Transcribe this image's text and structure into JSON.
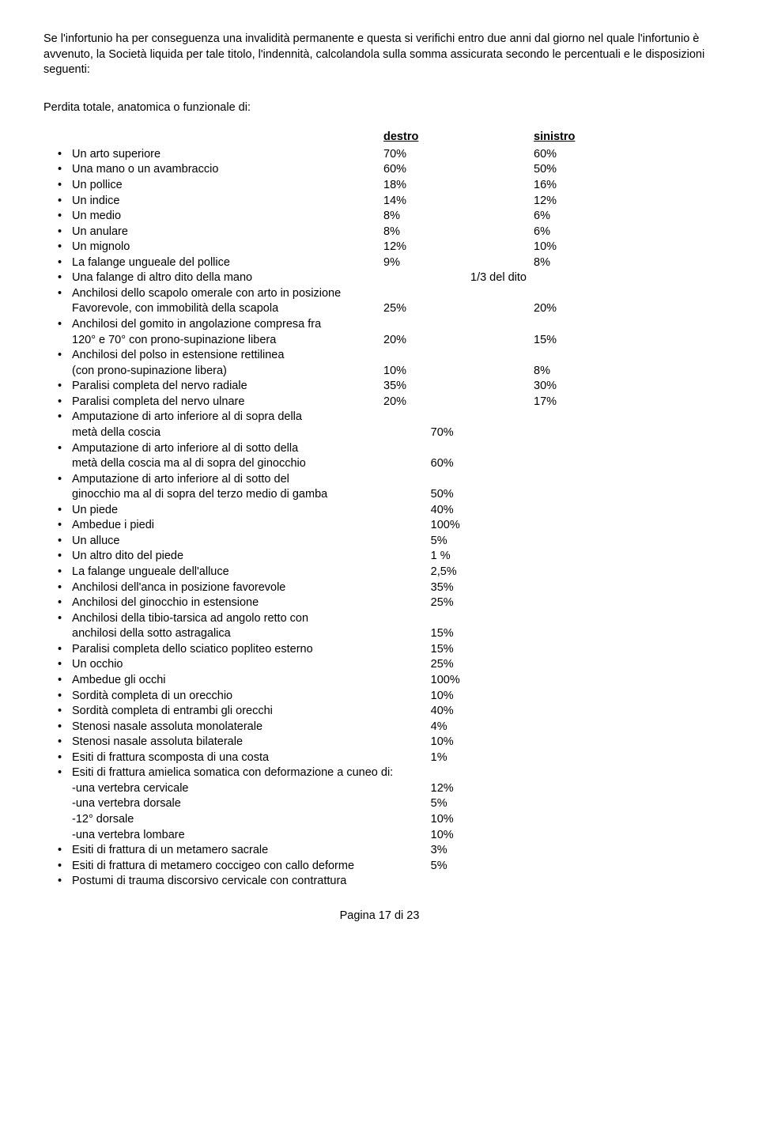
{
  "intro": "Se l'infortunio ha per conseguenza una invalidità permanente e questa si verifichi entro due anni dal giorno nel quale l'infortunio è avvenuto, la Società liquida per tale titolo, l'indennità, calcolandola sulla somma assicurata secondo le percentuali e le disposizioni seguenti:",
  "sub": "Perdita totale, anatomica o funzionale di:",
  "h1": "destro",
  "h2": "sinistro",
  "rows": [
    {
      "t": "two",
      "l": "Un arto superiore",
      "d": "70%",
      "s": "60%"
    },
    {
      "t": "two",
      "l": "Una mano o un avambraccio",
      "d": "60%",
      "s": "50%"
    },
    {
      "t": "two",
      "l": "Un pollice",
      "d": "18%",
      "s": "16%"
    },
    {
      "t": "two",
      "l": "Un indice",
      "d": "14%",
      "s": "12%"
    },
    {
      "t": "two",
      "l": "Un medio",
      "d": "8%",
      "s": "6%"
    },
    {
      "t": "two",
      "l": "Un anulare",
      "d": "8%",
      "s": "6%"
    },
    {
      "t": "two",
      "l": "Un mignolo",
      "d": "12%",
      "s": "10%"
    },
    {
      "t": "two",
      "l": "La falange ungueale del pollice",
      "d": "9%",
      "s": "8%"
    },
    {
      "t": "mid",
      "l": "Una falange di altro dito della mano",
      "m": "1/3 del dito"
    },
    {
      "t": "lbl",
      "l": "Anchilosi dello scapolo omerale con arto in posizione"
    },
    {
      "t": "two-sub",
      "l": "Favorevole, con immobilità della scapola",
      "d": "25%",
      "s": "20%"
    },
    {
      "t": "lbl",
      "l": "Anchilosi del gomito in angolazione compresa fra"
    },
    {
      "t": "two-sub",
      "l": "120° e 70° con prono-supinazione libera",
      "d": "20%",
      "s": "15%"
    },
    {
      "t": "lbl",
      "l": "Anchilosi del polso in estensione rettilinea"
    },
    {
      "t": "two-sub",
      "l": "(con prono-supinazione libera)",
      "d": "10%",
      "s": "8%"
    },
    {
      "t": "two",
      "l": "Paralisi completa del nervo radiale",
      "d": "35%",
      "s": "30%"
    },
    {
      "t": "two",
      "l": "Paralisi completa del nervo ulnare",
      "d": "20%",
      "s": "17%"
    },
    {
      "t": "lbl",
      "l": "Amputazione di arto inferiore al di sopra della"
    },
    {
      "t": "one-sub",
      "l": "metà della coscia",
      "v": "70%"
    },
    {
      "t": "lbl",
      "l": "Amputazione di arto inferiore al di sotto della"
    },
    {
      "t": "one-sub",
      "l": "metà della coscia ma al di sopra del ginocchio",
      "v": "60%"
    },
    {
      "t": "lbl",
      "l": "Amputazione di arto inferiore al di sotto del"
    },
    {
      "t": "one-sub",
      "l": "ginocchio ma al di sopra del terzo medio di gamba",
      "v": "50%"
    },
    {
      "t": "one",
      "l": "Un piede",
      "v": "40%"
    },
    {
      "t": "one",
      "l": "Ambedue i piedi",
      "v": "100%"
    },
    {
      "t": "one",
      "l": "Un alluce",
      "v": "5%"
    },
    {
      "t": "one",
      "l": "Un altro dito del piede",
      "v": "1 %"
    },
    {
      "t": "one",
      "l": "La falange ungueale dell'alluce",
      "v": "2,5%"
    },
    {
      "t": "one",
      "l": "Anchilosi dell'anca in posizione favorevole",
      "v": "35%"
    },
    {
      "t": "one",
      "l": "Anchilosi del ginocchio in estensione",
      "v": "25%"
    },
    {
      "t": "lbl",
      "l": "Anchilosi della tibio-tarsica ad angolo retto con"
    },
    {
      "t": "one-sub",
      "l": "anchilosi della sotto astragalica",
      "v": "15%"
    },
    {
      "t": "one",
      "l": "Paralisi completa dello sciatico popliteo esterno",
      "v": "15%"
    },
    {
      "t": "one",
      "l": "Un occhio",
      "v": "25%"
    },
    {
      "t": "one",
      "l": "Ambedue gli occhi",
      "v": "100%"
    },
    {
      "t": "one",
      "l": "Sordità completa di un orecchio",
      "v": "10%"
    },
    {
      "t": "one",
      "l": "Sordità completa di entrambi gli orecchi",
      "v": "40%"
    },
    {
      "t": "one",
      "l": "Stenosi nasale assoluta monolaterale",
      "v": "4%"
    },
    {
      "t": "one",
      "l": "Stenosi nasale assoluta bilaterale",
      "v": "10%"
    },
    {
      "t": "one",
      "l": "Esiti di frattura scomposta di una costa",
      "v": "1%"
    },
    {
      "t": "lbl",
      "l": "Esiti di frattura amielica somatica con deformazione a cuneo di:"
    },
    {
      "t": "one-sub",
      "l": "-una vertebra cervicale",
      "v": "12%"
    },
    {
      "t": "one-sub",
      "l": "-una vertebra dorsale",
      "v": "5%"
    },
    {
      "t": "one-sub",
      "l": "-12° dorsale",
      "v": "10%"
    },
    {
      "t": "one-sub",
      "l": "-una vertebra lombare",
      "v": "10%"
    },
    {
      "t": "one",
      "l": "Esiti di frattura di un metamero sacrale",
      "v": "3%"
    },
    {
      "t": "one",
      "l": "Esiti di frattura di metamero coccigeo con callo deforme",
      "v": "5%"
    },
    {
      "t": "lbl",
      "l": "Postumi di trauma discorsivo cervicale con contrattura"
    }
  ],
  "footer": "Pagina 17 di 23"
}
